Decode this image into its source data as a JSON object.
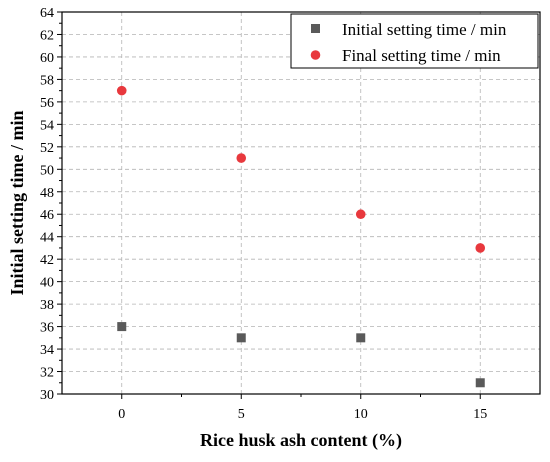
{
  "chart_data": {
    "type": "scatter",
    "title": "",
    "xlabel": "Rice husk ash content (%)",
    "ylabel": "Initial setting time / min",
    "xlim": [
      -2.5,
      17.5
    ],
    "ylim": [
      30,
      64
    ],
    "xticks": [
      0,
      5,
      10,
      15
    ],
    "yticks": [
      30,
      32,
      34,
      36,
      38,
      40,
      42,
      44,
      46,
      48,
      50,
      52,
      54,
      56,
      58,
      60,
      62,
      64
    ],
    "grid": true,
    "legend_position": "top-right",
    "series": [
      {
        "name": "Initial setting time / min",
        "marker": "square",
        "color": "#5a5a5a",
        "points": [
          {
            "x": 0,
            "y": 36
          },
          {
            "x": 5,
            "y": 35
          },
          {
            "x": 10,
            "y": 35
          },
          {
            "x": 15,
            "y": 31
          }
        ]
      },
      {
        "name": "Final setting time / min",
        "marker": "circle",
        "color": "#e8383d",
        "points": [
          {
            "x": 0,
            "y": 57
          },
          {
            "x": 5,
            "y": 51
          },
          {
            "x": 10,
            "y": 46
          },
          {
            "x": 15,
            "y": 43
          }
        ]
      }
    ]
  }
}
